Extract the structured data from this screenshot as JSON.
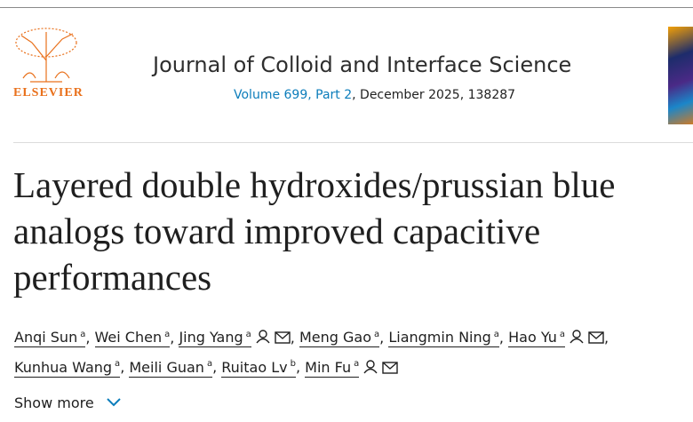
{
  "header": {
    "publisher": "ELSEVIER",
    "journal": "Journal of Colloid and Interface Science",
    "volume": "Volume 699, Part 2",
    "issue_details": ", December 2025, 138287"
  },
  "article": {
    "title": "Layered double hydroxides/prussian blue analogs toward improved capacitive performances",
    "separator": ",",
    "authors": [
      {
        "name": "Anqi Sun",
        "affiliation": "a"
      },
      {
        "name": "Wei Chen",
        "affiliation": "a"
      },
      {
        "name": "Jing Yang",
        "affiliation": "a"
      },
      {
        "name": "Meng Gao",
        "affiliation": "a"
      },
      {
        "name": "Liangmin Ning",
        "affiliation": "a"
      },
      {
        "name": "Hao Yu",
        "affiliation": "a"
      },
      {
        "name": "Kunhua Wang",
        "affiliation": "a"
      },
      {
        "name": "Meili Guan",
        "affiliation": "a"
      },
      {
        "name": "Ruitao Lv",
        "affiliation": "b"
      },
      {
        "name": "Min Fu",
        "affiliation": "a"
      }
    ],
    "show_more": "Show more"
  }
}
